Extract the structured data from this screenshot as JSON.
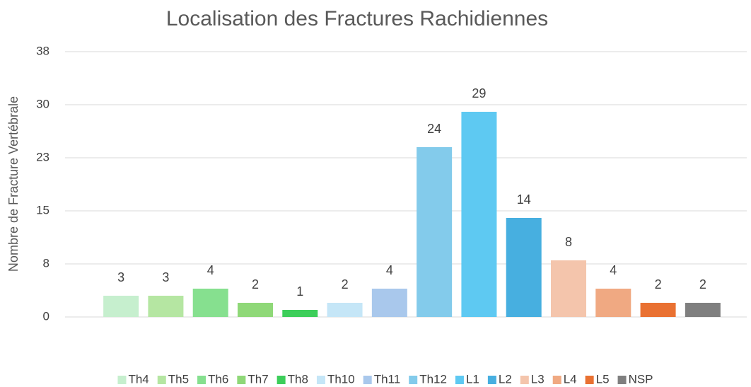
{
  "chart_data": {
    "type": "bar",
    "title": "Localisation des Fractures Rachidiennes",
    "y_label": "Nombre de Fracture Vertébrale",
    "categories": [
      "Th4",
      "Th5",
      "Th6",
      "Th7",
      "Th8",
      "Th10",
      "Th11",
      "Th12",
      "L1",
      "L2",
      "L3",
      "L4",
      "L5",
      "NSP"
    ],
    "values": [
      3,
      3,
      4,
      2,
      1,
      2,
      4,
      24,
      29,
      14,
      8,
      4,
      2,
      2
    ],
    "colors": [
      "#c6efce",
      "#b5e6a2",
      "#86e08f",
      "#8fd878",
      "#3dce5a",
      "#c5e6f7",
      "#a9c8ec",
      "#83cbeb",
      "#5ec9f2",
      "#47afe0",
      "#f4c5ac",
      "#f0a982",
      "#e97132",
      "#7f7f7f"
    ],
    "ylim": [
      0,
      37.5
    ],
    "yticks": [
      0,
      {
        "value": 7.5,
        "label": "8"
      },
      15,
      {
        "value": 22.5,
        "label": "23"
      },
      30,
      {
        "value": 37.5,
        "label": "38"
      }
    ],
    "grid": true,
    "legend": "bottom"
  }
}
